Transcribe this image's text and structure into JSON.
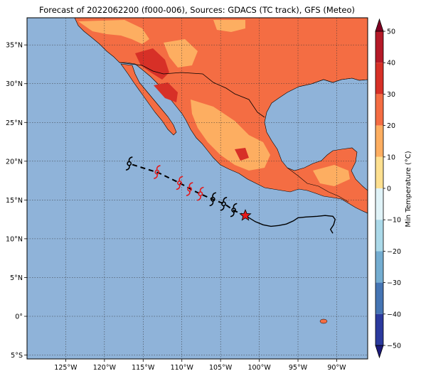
{
  "title": "Forecast of 2022062200 (f000-006), Sources: GDACS (TC track), GFS (Meteo)",
  "map": {
    "lon_range": [
      -130,
      -86
    ],
    "lat_range": [
      -5.5,
      38.5
    ],
    "lon_ticks": [
      "125°W",
      "120°W",
      "115°W",
      "110°W",
      "105°W",
      "100°W",
      "95°W",
      "90°W"
    ],
    "lon_values": [
      -125,
      -120,
      -115,
      -110,
      -105,
      -100,
      -95,
      -90
    ],
    "lat_ticks": [
      "35°N",
      "30°N",
      "25°N",
      "20°N",
      "15°N",
      "10°N",
      "5°N",
      "0°",
      "5°S"
    ],
    "lat_values": [
      35,
      30,
      25,
      20,
      15,
      10,
      5,
      0,
      -5
    ],
    "ocean_color": "#8fb3d9",
    "grid": "dotted"
  },
  "colorbar": {
    "label": "Min Temperature (°C)",
    "ticks": [
      "50",
      "40",
      "30",
      "20",
      "10",
      "0",
      "−10",
      "−20",
      "−30",
      "−40",
      "−50"
    ],
    "values": [
      50,
      40,
      30,
      20,
      10,
      0,
      -10,
      -20,
      -30,
      -40,
      -50
    ],
    "colors": [
      "#7f0022",
      "#b51a28",
      "#d73027",
      "#f46d43",
      "#fdae61",
      "#fee090",
      "#e0f3f8",
      "#abd9e9",
      "#74add1",
      "#4575b4",
      "#2b3a9e",
      "#1c1a7a"
    ]
  },
  "track": {
    "observed_path": [
      [
        -101.8,
        13.0
      ],
      [
        -100.5,
        12.2
      ],
      [
        -99.5,
        11.8
      ],
      [
        -98.5,
        11.6
      ],
      [
        -97.5,
        11.7
      ],
      [
        -96.5,
        11.9
      ],
      [
        -95.6,
        12.3
      ],
      [
        -95.0,
        12.7
      ],
      [
        -94.0,
        12.8
      ],
      [
        -92.5,
        12.9
      ],
      [
        -91.5,
        13.0
      ],
      [
        -90.5,
        12.9
      ],
      [
        -90.2,
        12.5
      ],
      [
        -90.4,
        11.8
      ],
      [
        -90.8,
        11.2
      ],
      [
        -90.5,
        10.7
      ]
    ],
    "forecast_path": [
      [
        -101.8,
        13.0
      ],
      [
        -103.2,
        13.6
      ],
      [
        -104.5,
        14.5
      ],
      [
        -105.8,
        15.0
      ],
      [
        -107.2,
        15.6
      ],
      [
        -108.5,
        16.2
      ],
      [
        -110.3,
        17.2
      ],
      [
        -113.0,
        18.5
      ],
      [
        -116.5,
        19.6
      ]
    ],
    "current_position": [
      -101.8,
      13.0
    ],
    "symbols": [
      {
        "lon": -103.3,
        "lat": 13.7,
        "color": "#000000"
      },
      {
        "lon": -104.6,
        "lat": 14.5,
        "color": "#000000"
      },
      {
        "lon": -106.0,
        "lat": 15.1,
        "color": "#000000"
      },
      {
        "lon": -107.6,
        "lat": 15.8,
        "color": "#e41a1c"
      },
      {
        "lon": -109.0,
        "lat": 16.4,
        "color": "#e41a1c"
      },
      {
        "lon": -110.3,
        "lat": 17.2,
        "color": "#e41a1c"
      },
      {
        "lon": -113.2,
        "lat": 18.6,
        "color": "#e41a1c"
      },
      {
        "lon": -116.8,
        "lat": 19.7,
        "color": "#000000"
      }
    ]
  }
}
